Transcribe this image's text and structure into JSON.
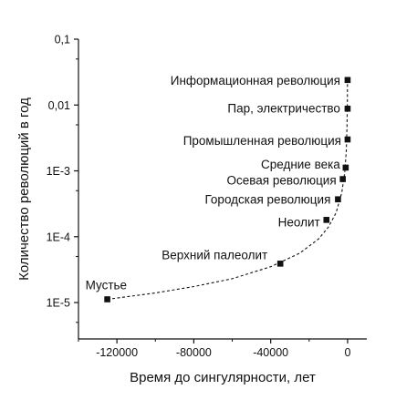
{
  "chart_data": {
    "type": "scatter",
    "xlabel": "Время до сингулярности, лет",
    "ylabel": "Количество революций в год",
    "xlim": [
      -140000,
      10000
    ],
    "ylim": [
      2.8e-06,
      0.1
    ],
    "yscale": "log",
    "grid": false,
    "legend": "none",
    "x_ticks": [
      {
        "value": -120000,
        "label": "-120000"
      },
      {
        "value": -80000,
        "label": "-80000"
      },
      {
        "value": -40000,
        "label": "-40000"
      },
      {
        "value": 0,
        "label": "0"
      }
    ],
    "y_ticks": [
      {
        "value": 0.1,
        "label": "0,1"
      },
      {
        "value": 0.01,
        "label": "0,01"
      },
      {
        "value": 0.001,
        "label": "1E-3"
      },
      {
        "value": 0.0001,
        "label": "1E-4"
      },
      {
        "value": 1e-05,
        "label": "1E-5"
      }
    ],
    "points": [
      {
        "x": -125000,
        "y": 1.12e-05,
        "label": "Мустье",
        "anchor": "start",
        "dx": -24,
        "dy": -16
      },
      {
        "x": -35000,
        "y": 3.9e-05,
        "label": "Верхний палеолит",
        "anchor": "end",
        "dx": -14,
        "dy": -10
      },
      {
        "x": -11000,
        "y": 0.00018,
        "label": "Неолит",
        "anchor": "end",
        "dx": -7,
        "dy": 2
      },
      {
        "x": -5000,
        "y": 0.00037,
        "label": "Городская революция",
        "anchor": "end",
        "dx": -8,
        "dy": 0
      },
      {
        "x": -2500,
        "y": 0.00075,
        "label": "Осевая революция",
        "anchor": "end",
        "dx": -7,
        "dy": 1
      },
      {
        "x": -1000,
        "y": 0.00112,
        "label": "Средние века",
        "anchor": "end",
        "dx": -6,
        "dy": -4
      },
      {
        "x": 0,
        "y": 0.003,
        "label": "Промышленная революция",
        "anchor": "end",
        "dx": -7,
        "dy": 1
      },
      {
        "x": 0,
        "y": 0.0088,
        "label": "Пар, электричество",
        "anchor": "end",
        "dx": -8,
        "dy": -1
      },
      {
        "x": 0,
        "y": 0.024,
        "label": "Информационная революция",
        "anchor": "end",
        "dx": -8,
        "dy": 0
      }
    ],
    "trend": {
      "style": "dashed",
      "points": [
        {
          "x": -125000,
          "y": 1.12e-05
        },
        {
          "x": -100000,
          "y": 1.4e-05
        },
        {
          "x": -80000,
          "y": 1.75e-05
        },
        {
          "x": -60000,
          "y": 2.3e-05
        },
        {
          "x": -40000,
          "y": 3.5e-05
        },
        {
          "x": -25000,
          "y": 5.6e-05
        },
        {
          "x": -15000,
          "y": 9.3e-05
        },
        {
          "x": -10000,
          "y": 0.00014
        },
        {
          "x": -6000,
          "y": 0.00023
        },
        {
          "x": -3000,
          "y": 0.00047
        },
        {
          "x": -1500,
          "y": 0.00094
        },
        {
          "x": -700,
          "y": 0.002
        },
        {
          "x": -300,
          "y": 0.0047
        },
        {
          "x": -120,
          "y": 0.0117
        },
        {
          "x": -60,
          "y": 0.024
        }
      ]
    },
    "colors": {
      "axis": "#111111",
      "marker": "#111111",
      "text": "#111111"
    }
  }
}
